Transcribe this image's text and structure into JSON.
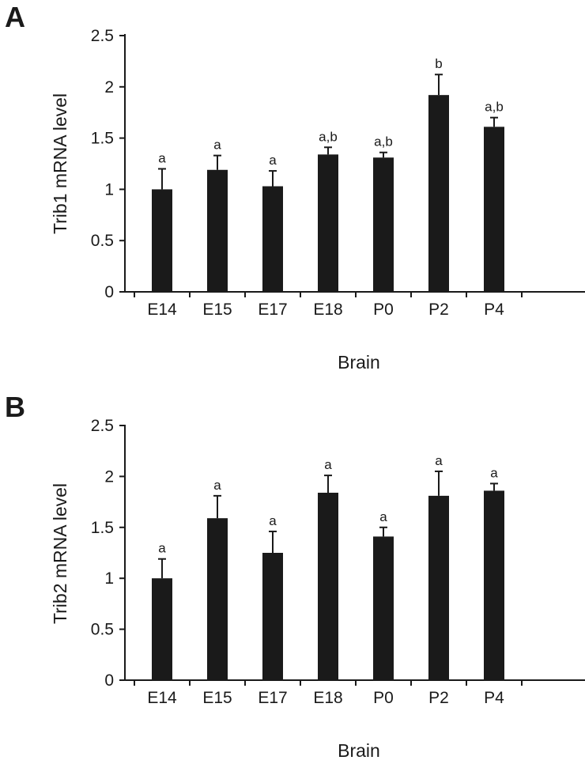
{
  "chart_data": [
    {
      "type": "bar",
      "panel_label": "A",
      "title": "",
      "xlabel": "Brain",
      "ylabel": "Trib1 mRNA level",
      "ylim": [
        0,
        2.5
      ],
      "yticks": [
        "0",
        "0.5",
        "1",
        "1.5",
        "2",
        "2.5"
      ],
      "categories": [
        "E14",
        "E15",
        "E17",
        "E18",
        "P0",
        "P2",
        "P4"
      ],
      "values": [
        1.0,
        1.19,
        1.03,
        1.34,
        1.31,
        1.92,
        1.61
      ],
      "errors": [
        0.2,
        0.14,
        0.15,
        0.07,
        0.05,
        0.2,
        0.09
      ],
      "significance": [
        "a",
        "a",
        "a",
        "a,b",
        "a,b",
        "b",
        "a,b"
      ],
      "grid": false,
      "legend": "none"
    },
    {
      "type": "bar",
      "panel_label": "B",
      "title": "",
      "xlabel": "Brain",
      "ylabel": "Trib2 mRNA level",
      "ylim": [
        0,
        2.5
      ],
      "yticks": [
        "0",
        "0.5",
        "1",
        "1.5",
        "2",
        "2.5"
      ],
      "categories": [
        "E14",
        "E15",
        "E17",
        "E18",
        "P0",
        "P2",
        "P4"
      ],
      "values": [
        1.0,
        1.59,
        1.25,
        1.84,
        1.41,
        1.81,
        1.86
      ],
      "errors": [
        0.19,
        0.22,
        0.21,
        0.17,
        0.09,
        0.24,
        0.07
      ],
      "significance": [
        "a",
        "a",
        "a",
        "a",
        "a",
        "a",
        "a"
      ],
      "grid": false,
      "legend": "none"
    }
  ]
}
